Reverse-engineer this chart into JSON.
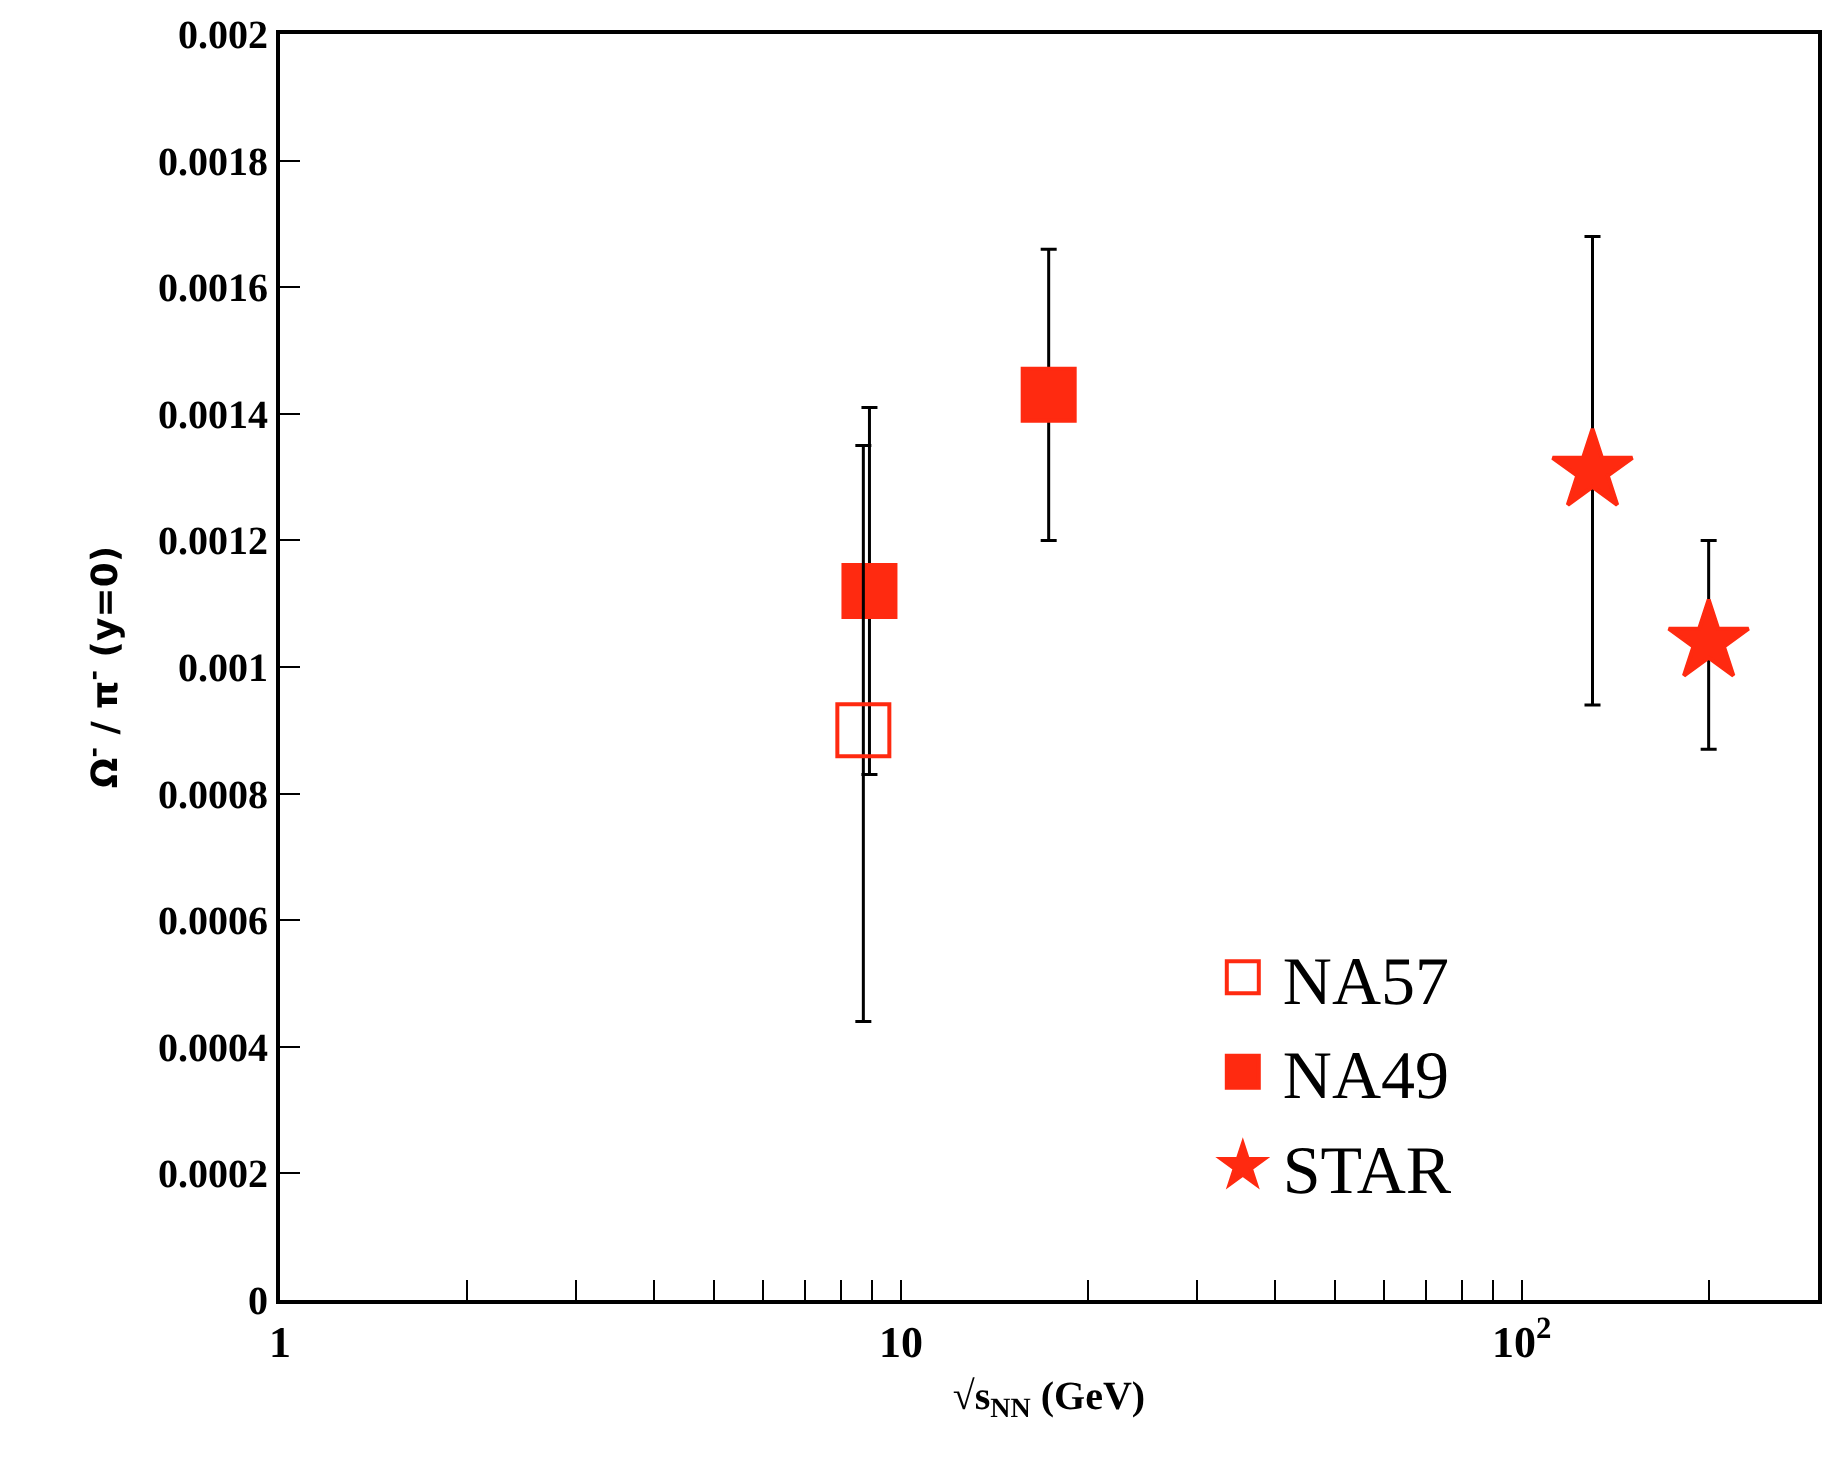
{
  "chart_data": {
    "type": "scatter",
    "xlabel": "√s$_{NN}$ (GeV)",
    "ylabel": "Ω$^{-}$ / π$^{-}$ (y=0)",
    "log": "x",
    "legend": "bottom right",
    "xlim": [
      1,
      300
    ],
    "xticks": [
      1,
      {
        "value": 2,
        "label": null
      },
      {
        "value": 3,
        "label": null
      },
      {
        "value": 4,
        "label": null
      },
      {
        "value": 5,
        "label": null
      },
      {
        "value": 6,
        "label": null
      },
      {
        "value": 7,
        "label": null
      },
      {
        "value": 8,
        "label": null
      },
      {
        "value": 9,
        "label": null
      },
      10,
      {
        "value": 20,
        "label": null
      },
      {
        "value": 30,
        "label": null
      },
      {
        "value": 40,
        "label": null
      },
      {
        "value": 50,
        "label": null
      },
      {
        "value": 60,
        "label": null
      },
      {
        "value": 70,
        "label": null
      },
      {
        "value": 80,
        "label": null
      },
      {
        "value": 90,
        "label": null
      },
      {
        "value": 100,
        "label": "10$^{2}$"
      },
      {
        "value": 200,
        "label": null
      }
    ],
    "ylim": [
      0,
      0.002
    ],
    "yticks": [
      0,
      0.0002,
      0.0004,
      0.0006,
      0.0008,
      0.001,
      0.0012,
      0.0014,
      0.0016,
      0.0018,
      0.002
    ],
    "series": [
      {
        "name": "NA57",
        "color": "#ff2a10",
        "marker": "square-open",
        "x": [
          8.7
        ],
        "values": [
          0.0009
        ],
        "errors": [
          [
            0.00044,
            0.00135
          ]
        ]
      },
      {
        "name": "NA49",
        "color": "#ff2a10",
        "marker": "square",
        "x": [
          8.9,
          17.3
        ],
        "values": [
          0.00112,
          0.00143
        ],
        "errors": [
          [
            0.00083,
            0.00141
          ],
          [
            0.0012,
            0.00166
          ]
        ]
      },
      {
        "name": "STAR",
        "color": "#ff2a10",
        "marker": "star",
        "x": [
          130,
          200
        ],
        "values": [
          0.00131,
          0.00104
        ],
        "errors": [
          [
            0.00094,
            0.00168
          ],
          [
            0.00087,
            0.0012
          ]
        ]
      }
    ]
  }
}
